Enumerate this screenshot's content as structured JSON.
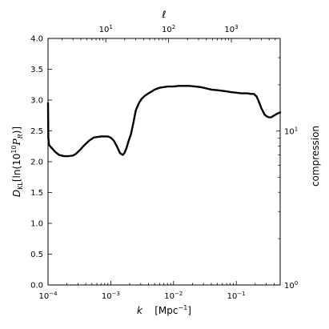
{
  "chart_data": {
    "type": "line",
    "xlabel_symbol": "k",
    "xlabel_unit": "[Mpc",
    "xlabel_unit_sup": "−1",
    "xlabel_unit_end": "]",
    "ylabel": "D_KL[ln(10^10 P_R)]",
    "ylabel_parts": {
      "d": "D",
      "sub": "KL",
      "open": "[ln(10",
      "sup": "10",
      "p": "P",
      "psub": "R",
      "close": ")]"
    },
    "ylabel_right": "compression",
    "xlabel_top": "ℓ",
    "x_scale": "log",
    "xlim": [
      0.0001,
      0.5
    ],
    "ylim": [
      0,
      4.0
    ],
    "x_ticks": [
      {
        "value": 0.0001,
        "base": "10",
        "exp": "−4"
      },
      {
        "value": 0.001,
        "base": "10",
        "exp": "−3"
      },
      {
        "value": 0.01,
        "base": "10",
        "exp": "−2"
      },
      {
        "value": 0.1,
        "base": "10",
        "exp": "−1"
      }
    ],
    "y_ticks": [
      {
        "value": 0.0,
        "label": "0.0"
      },
      {
        "value": 0.5,
        "label": "0.5"
      },
      {
        "value": 1.0,
        "label": "1.0"
      },
      {
        "value": 1.5,
        "label": "1.5"
      },
      {
        "value": 2.0,
        "label": "2.0"
      },
      {
        "value": 2.5,
        "label": "2.5"
      },
      {
        "value": 3.0,
        "label": "3.0"
      },
      {
        "value": 3.5,
        "label": "3.5"
      },
      {
        "value": 4.0,
        "label": "4.0"
      }
    ],
    "top_ticks": [
      {
        "value": 10,
        "base": "10",
        "exp": "1"
      },
      {
        "value": 100,
        "base": "10",
        "exp": "2"
      },
      {
        "value": 1000,
        "base": "10",
        "exp": "3"
      }
    ],
    "top_xlim": [
      1.2,
      6000
    ],
    "right_ticks": [
      {
        "value": 1,
        "base": "10",
        "exp": "0"
      },
      {
        "value": 10,
        "base": "10",
        "exp": "1"
      }
    ],
    "right_ylim": [
      1,
      40
    ],
    "series": [
      {
        "x": [
          0.0001,
          0.000101,
          0.000104,
          0.000115,
          0.00013,
          0.00015,
          0.00018,
          0.00021,
          0.00025,
          0.00028,
          0.00033,
          0.00038,
          0.00045,
          0.00053,
          0.0006,
          0.0007,
          0.0008,
          0.0009,
          0.001,
          0.00112,
          0.00125,
          0.0014,
          0.00155,
          0.00165,
          0.00178,
          0.0019,
          0.0021,
          0.0023,
          0.0025,
          0.0028,
          0.0031,
          0.0035,
          0.004,
          0.0045,
          0.005,
          0.006,
          0.007,
          0.008,
          0.009,
          0.01,
          0.012,
          0.015,
          0.018,
          0.022,
          0.027,
          0.033,
          0.04,
          0.05,
          0.06,
          0.07,
          0.08,
          0.1,
          0.12,
          0.15,
          0.17,
          0.19,
          0.21,
          0.23,
          0.25,
          0.28,
          0.3,
          0.33,
          0.36,
          0.4,
          0.45,
          0.5
        ],
        "y": [
          2.95,
          2.38,
          2.27,
          2.22,
          2.16,
          2.11,
          2.09,
          2.09,
          2.1,
          2.13,
          2.2,
          2.27,
          2.34,
          2.39,
          2.4,
          2.41,
          2.41,
          2.41,
          2.39,
          2.34,
          2.25,
          2.14,
          2.11,
          2.14,
          2.22,
          2.32,
          2.45,
          2.64,
          2.83,
          2.95,
          3.02,
          3.07,
          3.11,
          3.14,
          3.17,
          3.2,
          3.21,
          3.22,
          3.22,
          3.22,
          3.23,
          3.23,
          3.23,
          3.22,
          3.21,
          3.19,
          3.17,
          3.16,
          3.15,
          3.14,
          3.13,
          3.12,
          3.11,
          3.11,
          3.1,
          3.1,
          3.06,
          2.97,
          2.87,
          2.77,
          2.74,
          2.72,
          2.72,
          2.75,
          2.78,
          2.8
        ]
      }
    ]
  }
}
